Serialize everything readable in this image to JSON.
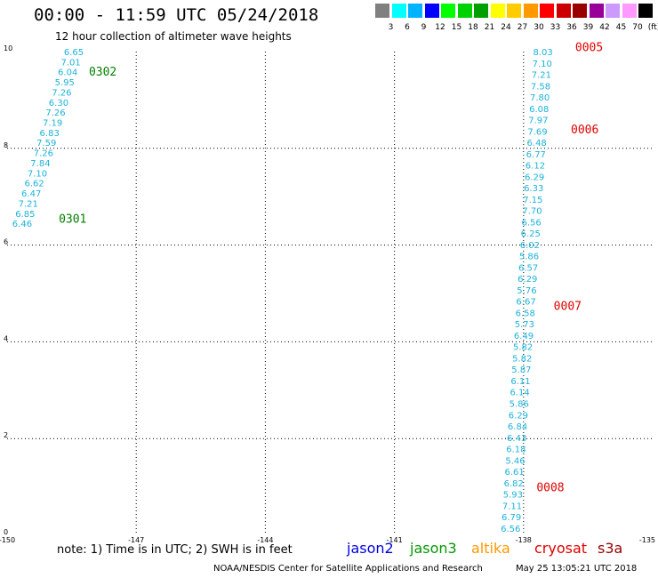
{
  "header": {
    "title": "00:00 - 11:59 UTC 05/24/2018",
    "subtitle": "12 hour collection of altimeter wave heights"
  },
  "legend": {
    "colors": [
      "#808080",
      "#00ffff",
      "#00b2ff",
      "#0000ff",
      "#00ff00",
      "#00d200",
      "#00a000",
      "#ffff00",
      "#ffcc00",
      "#ff9900",
      "#ff0000",
      "#cc0000",
      "#990000",
      "#990099",
      "#cc99ff",
      "#ff99ff",
      "#000000"
    ],
    "labels": [
      "3",
      "6",
      "9",
      "12",
      "15",
      "18",
      "21",
      "24",
      "27",
      "30",
      "33",
      "36",
      "39",
      "42",
      "45",
      "70",
      "(ft)"
    ]
  },
  "axes": {
    "x_ticks": [
      "-150",
      "-147",
      "-144",
      "-141",
      "-138",
      "-135"
    ],
    "y_ticks": [
      "0",
      "2",
      "4",
      "6",
      "8",
      "10"
    ]
  },
  "tracks": [
    {
      "label": "0301",
      "color": "#008000",
      "lon": -148.8,
      "lat": 6.55
    },
    {
      "label": "0302",
      "color": "#008000",
      "lon": -148.1,
      "lat": 9.6
    },
    {
      "label": "0005",
      "color": "#e00000",
      "lon": -136.8,
      "lat": 10.1
    },
    {
      "label": "0006",
      "color": "#e00000",
      "lon": -136.9,
      "lat": 8.4
    },
    {
      "label": "0007",
      "color": "#e00000",
      "lon": -137.3,
      "lat": 4.75
    },
    {
      "label": "0008",
      "color": "#e00000",
      "lon": -137.7,
      "lat": 1.0
    }
  ],
  "pass_a": {
    "name": "0301-0302",
    "start_lon": -149.65,
    "start_lat": 6.45,
    "end_lon": -148.45,
    "end_lat": 10.0,
    "values": [
      "6.46",
      "6.85",
      "7.21",
      "6.47",
      "6.62",
      "7.10",
      "7.84",
      "7.26",
      "7.59",
      "6.83",
      "7.19",
      "7.26",
      "6.30",
      "7.26",
      "5.95",
      "6.04",
      "7.01",
      "6.65"
    ]
  },
  "pass_b": {
    "name": "0005-0008",
    "start_lon": -138.3,
    "start_lat": 0.15,
    "end_lon": -137.55,
    "end_lat": 10.0,
    "values": [
      "6.56",
      "6.79",
      "7.11",
      "5.93",
      "6.82",
      "6.61",
      "5.46",
      "6.18",
      "6.43",
      "6.84",
      "6.29",
      "5.86",
      "6.14",
      "6.11",
      "5.87",
      "5.82",
      "5.82",
      "6.49",
      "5.73",
      "6.58",
      "6.67",
      "5.76",
      "6.29",
      "6.57",
      "5.86",
      "6.02",
      "6.25",
      "6.56",
      "7.70",
      "7.15",
      "6.33",
      "6.29",
      "6.12",
      "6.77",
      "6.48",
      "7.69",
      "7.97",
      "6.08",
      "7.80",
      "7.58",
      "7.21",
      "7.10",
      "8.03"
    ]
  },
  "footer": {
    "note": "note: 1) Time is in UTC; 2) SWH is in feet",
    "missions": [
      {
        "name": "jason2",
        "color": "#0000dd"
      },
      {
        "name": "jason3",
        "color": "#009900"
      },
      {
        "name": "altika",
        "color": "#ff9900"
      },
      {
        "name": "cryosat",
        "color": "#dd0000"
      },
      {
        "name": "s3a",
        "color": "#990000"
      }
    ],
    "credit": "NOAA/NESDIS Center for Satellite Applications and Research",
    "timestamp": "May 25 13:05:21 UTC 2018"
  }
}
